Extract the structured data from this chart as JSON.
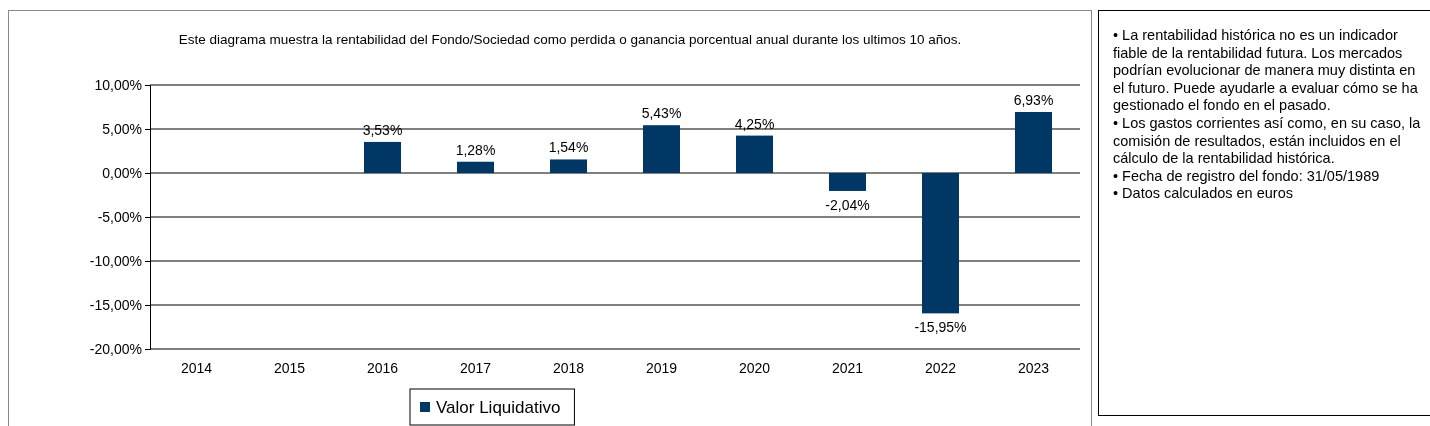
{
  "chart_data": {
    "type": "bar",
    "title": "Este diagrama muestra la rentabilidad del Fondo/Sociedad como perdida o ganancia porcentual anual durante los ultimos 10 años.",
    "categories": [
      "2014",
      "2015",
      "2016",
      "2017",
      "2018",
      "2019",
      "2020",
      "2021",
      "2022",
      "2023"
    ],
    "series": [
      {
        "name": "Valor Liquidativo",
        "color": "#003764",
        "values": [
          null,
          null,
          3.53,
          1.28,
          1.54,
          5.43,
          4.25,
          -2.04,
          -15.95,
          6.93
        ],
        "value_labels": [
          null,
          null,
          "3,53%",
          "1,28%",
          "1,54%",
          "5,43%",
          "4,25%",
          "-2,04%",
          "-15,95%",
          "6,93%"
        ]
      }
    ],
    "ylim": [
      -20,
      10
    ],
    "yticks": [
      {
        "value": 10,
        "label": "10,00%"
      },
      {
        "value": 5,
        "label": "5,00%"
      },
      {
        "value": 0,
        "label": "0,00%"
      },
      {
        "value": -5,
        "label": "-5,00%"
      },
      {
        "value": -10,
        "label": "-10,00%"
      },
      {
        "value": -15,
        "label": "-15,00%"
      },
      {
        "value": -20,
        "label": "-20,00%"
      }
    ],
    "grid": "y",
    "legend": "bottom",
    "annotations": [
      "• La rentabilidad histórica no es un indicador fiable de la rentabilidad futura. Los mercados podrían evolucionar de manera muy distinta en el futuro. Puede ayudarle a evaluar cómo se ha gestionado el fondo en el pasado.",
      "• Los gastos corrientes así como, en su caso, la comisión de resultados, están incluidos en el cálculo de la rentabilidad histórica.",
      "• Fecha de registro del fondo: 31/05/1989",
      "• Datos calculados en euros"
    ]
  }
}
